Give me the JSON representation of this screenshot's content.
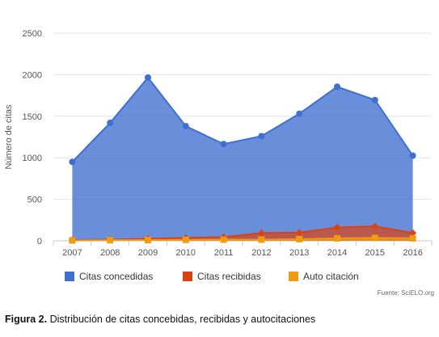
{
  "chart_data": {
    "type": "area",
    "title": "",
    "xlabel": "",
    "ylabel": "Número de citas",
    "ylim": [
      0,
      2500
    ],
    "yticks": [
      0,
      500,
      1000,
      1500,
      2000,
      2500
    ],
    "grid": "horizontal",
    "legend_position": "bottom-left",
    "categories": [
      "2007",
      "2008",
      "2009",
      "2010",
      "2011",
      "2012",
      "2013",
      "2014",
      "2015",
      "2016"
    ],
    "series": [
      {
        "name": "Citas concedidas",
        "color": "#3f6fcf",
        "marker": "circle",
        "values": [
          950,
          1420,
          1965,
          1380,
          1165,
          1260,
          1530,
          1855,
          1695,
          1025
        ]
      },
      {
        "name": "Citas recibidas",
        "color": "#d84315",
        "marker": "diamond",
        "values": [
          10,
          15,
          25,
          35,
          45,
          95,
          100,
          160,
          175,
          95
        ]
      },
      {
        "name": "Auto citación",
        "color": "#f29a11",
        "marker": "square",
        "values": [
          5,
          8,
          10,
          12,
          15,
          15,
          20,
          30,
          35,
          30
        ]
      }
    ],
    "source": "Fuente: SciELO.org"
  },
  "caption": {
    "label": "Figura 2.",
    "text": " Distribución de citas concebidas, recibidas y autocitaciones"
  }
}
